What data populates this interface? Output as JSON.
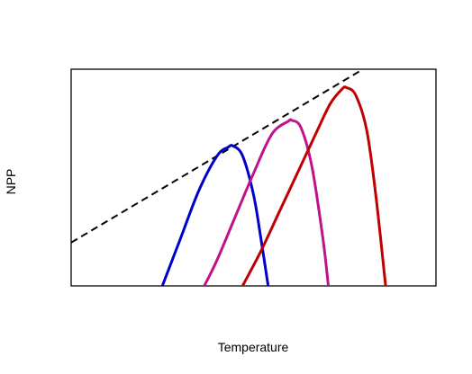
{
  "chart_data": {
    "type": "line",
    "title": "",
    "xlabel": "Temperature",
    "ylabel": "NPP",
    "xticks": false,
    "yticks": false,
    "xlim": [
      0,
      100
    ],
    "ylim": [
      0,
      100
    ],
    "grid": false,
    "legend": "none",
    "series": [
      {
        "style": "dashed",
        "color": "#000000",
        "x": [
          0,
          80
        ],
        "y": [
          20,
          100
        ]
      },
      {
        "color": "#0000cc",
        "x": [
          25,
          30,
          35,
          40,
          43,
          44.4,
          47,
          50,
          52,
          54
        ],
        "y": [
          0,
          22,
          44,
          60,
          64,
          64.6,
          60,
          42,
          22,
          0
        ]
      },
      {
        "color": "#c0128a",
        "x": [
          36.5,
          40,
          45,
          50,
          55,
          59.5,
          60.5,
          63,
          66,
          69,
          70.5
        ],
        "y": [
          0,
          12,
          32,
          52,
          70,
          76,
          76.4,
          73,
          55,
          22,
          0
        ]
      },
      {
        "color": "#c00000",
        "x": [
          47,
          52,
          57,
          62,
          67,
          71,
          74.3,
          75.5,
          78,
          81,
          83.5,
          86.2
        ],
        "y": [
          0,
          16,
          34,
          52,
          70,
          84,
          90.9,
          91.5,
          88,
          72,
          42,
          0
        ]
      }
    ]
  }
}
